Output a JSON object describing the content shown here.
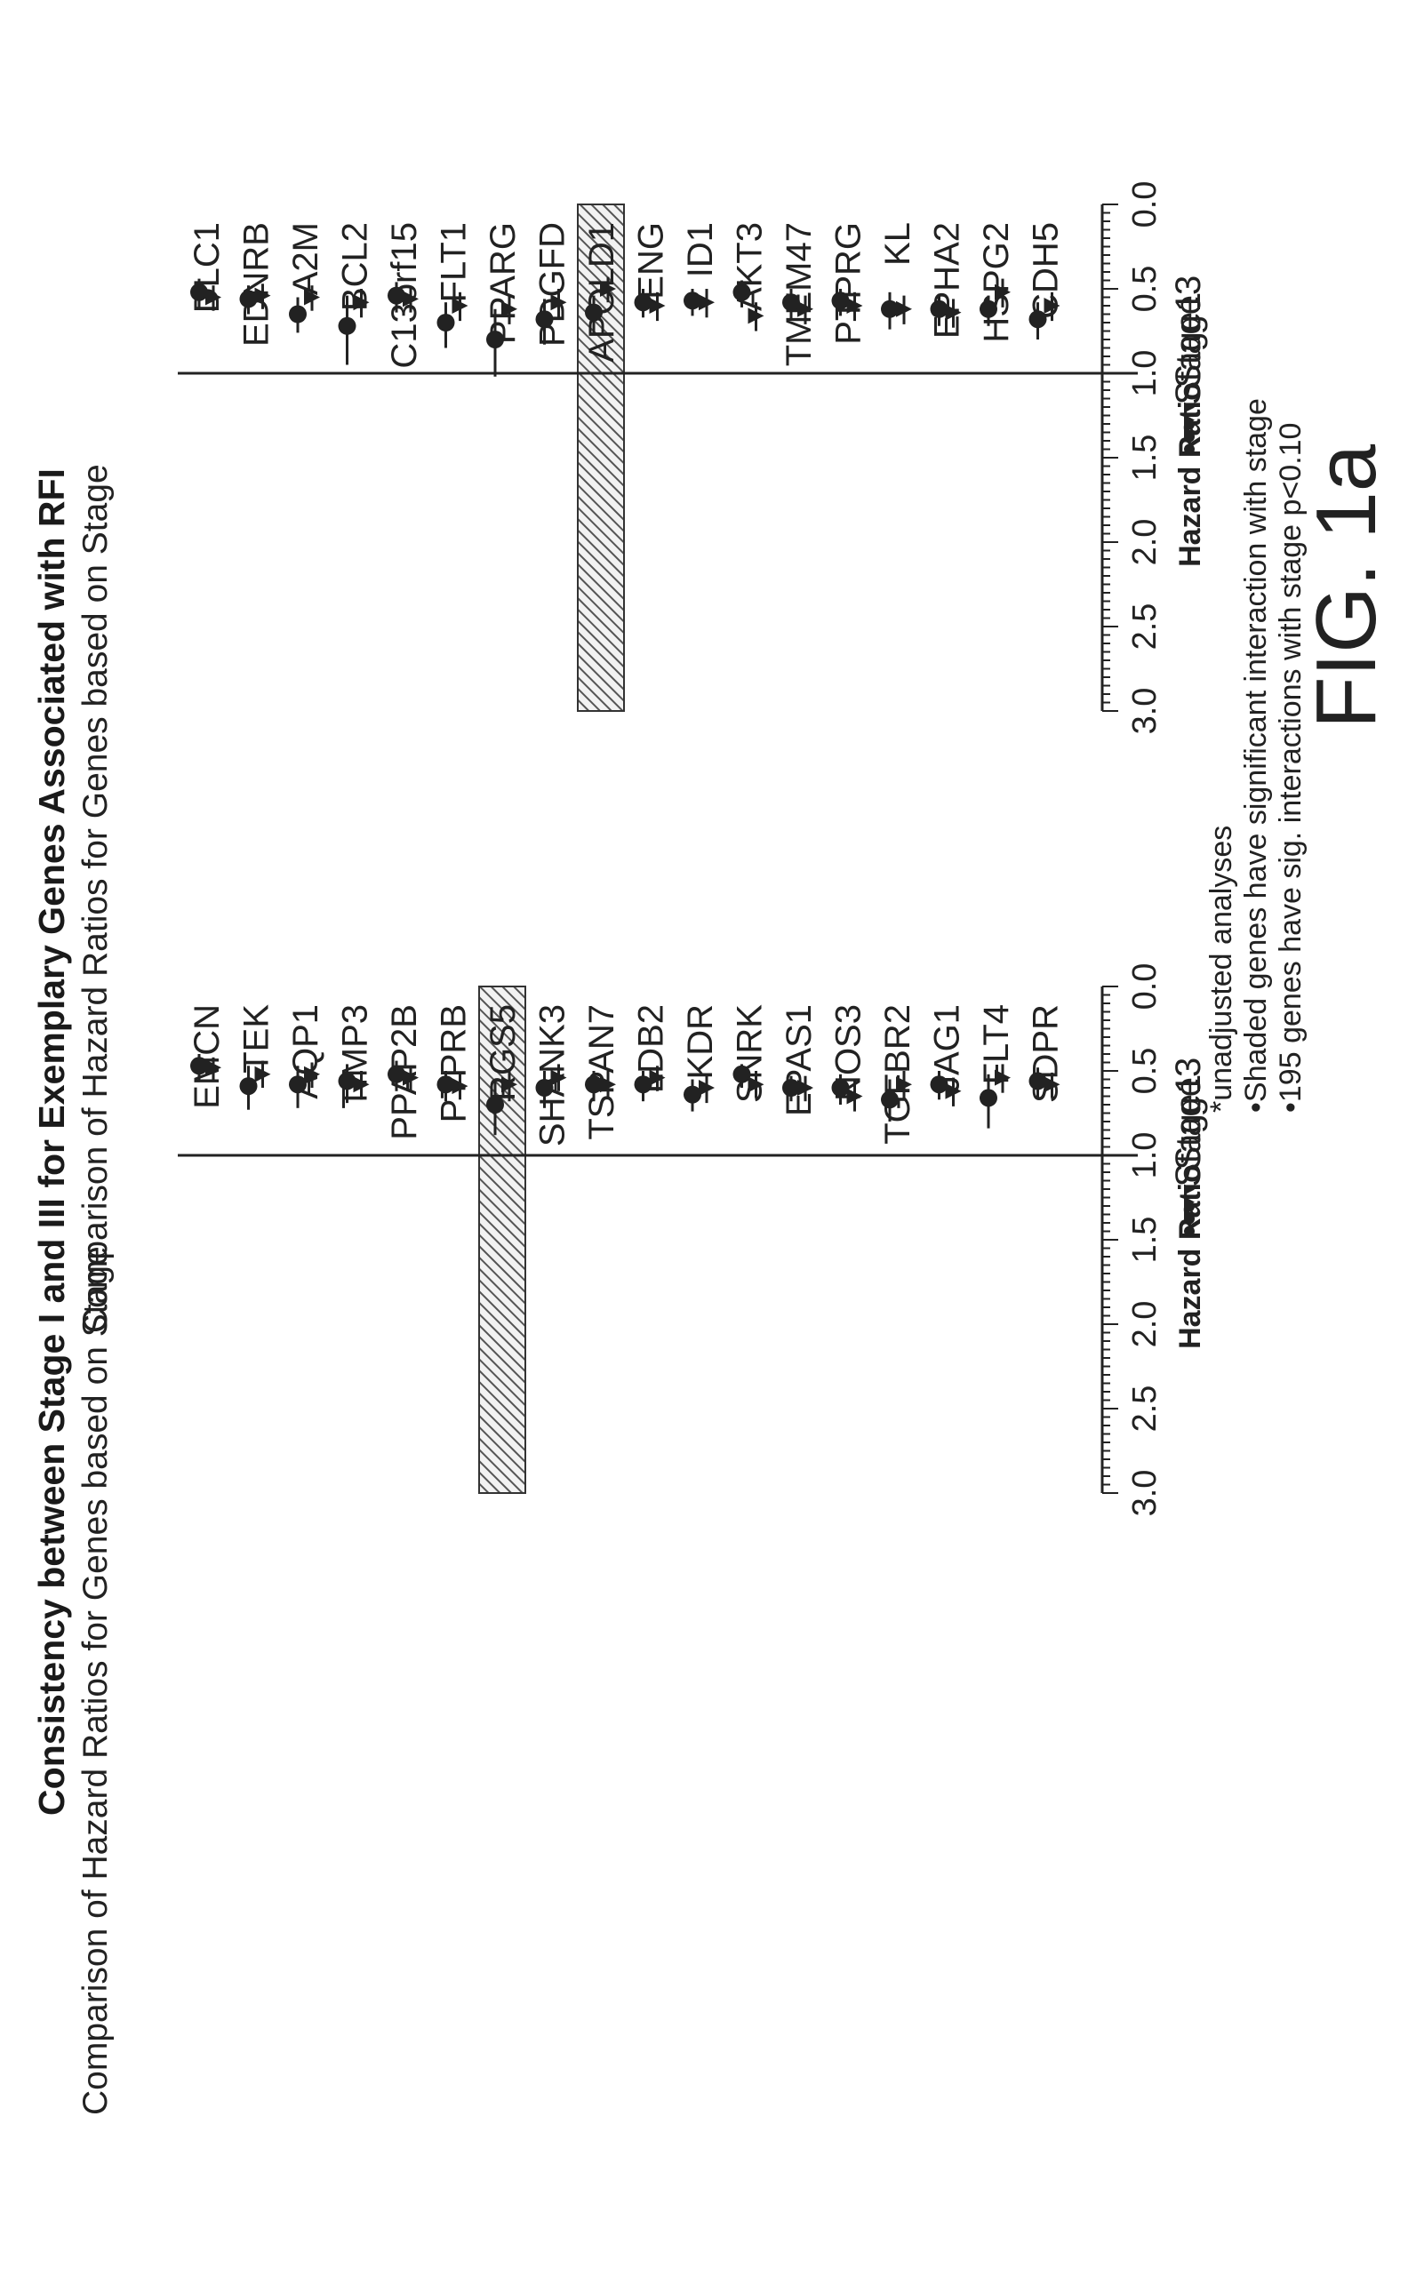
{
  "title": "Consistency between Stage I and III for Exemplary Genes Associated with RFI",
  "chart_data": [
    {
      "type": "scatter",
      "title": "Comparison of Hazard Ratios for Genes based on Stage",
      "xlabel": "Hazard Ratio",
      "xlim": [
        0.0,
        3.0
      ],
      "xticks": [
        "0.0",
        "0.5",
        "1.0",
        "1.5",
        "2.0",
        "2.5",
        "3.0"
      ],
      "reference_line": 1.0,
      "categories": [
        "EMCN",
        "TEK",
        "AQP1",
        "TIMP3",
        "PPAP2B",
        "PTPRB",
        "RGS5",
        "SHANK3",
        "TSPAN7",
        "LDB2",
        "KDR",
        "SNRK",
        "EPAS1",
        "NOS3",
        "TGFBR2",
        "JAG1",
        "FLT4",
        "SDPR"
      ],
      "shaded": [
        "RGS5"
      ],
      "legend": {
        "stage1": "Stage1",
        "stage3": "Stage3"
      },
      "series": [
        {
          "name": "Stage1",
          "marker": "circle",
          "values": [
            0.47,
            0.59,
            0.58,
            0.56,
            0.52,
            0.58,
            0.7,
            0.6,
            0.58,
            0.58,
            0.64,
            0.52,
            0.6,
            0.6,
            0.67,
            0.58,
            0.66,
            0.56
          ],
          "lower": [
            0.4,
            0.47,
            0.47,
            0.46,
            0.44,
            0.5,
            0.55,
            0.5,
            0.5,
            0.5,
            0.55,
            0.46,
            0.53,
            0.52,
            0.55,
            0.5,
            0.52,
            0.48
          ],
          "upper": [
            0.56,
            0.73,
            0.72,
            0.69,
            0.62,
            0.68,
            0.88,
            0.72,
            0.68,
            0.68,
            0.74,
            0.6,
            0.68,
            0.7,
            0.8,
            0.67,
            0.84,
            0.66
          ]
        },
        {
          "name": "Stage3",
          "marker": "triangle",
          "values": [
            0.48,
            0.52,
            0.52,
            0.58,
            0.54,
            0.59,
            0.58,
            0.54,
            0.58,
            0.54,
            0.6,
            0.58,
            0.6,
            0.65,
            0.58,
            0.62,
            0.54,
            0.58
          ],
          "lower": [
            0.42,
            0.44,
            0.45,
            0.5,
            0.47,
            0.52,
            0.49,
            0.46,
            0.5,
            0.47,
            0.52,
            0.5,
            0.53,
            0.56,
            0.5,
            0.54,
            0.46,
            0.51
          ],
          "upper": [
            0.56,
            0.6,
            0.6,
            0.67,
            0.62,
            0.67,
            0.68,
            0.62,
            0.66,
            0.62,
            0.69,
            0.66,
            0.68,
            0.74,
            0.67,
            0.71,
            0.63,
            0.66
          ]
        }
      ]
    },
    {
      "type": "scatter",
      "title": "Comparison of Hazard Ratios for Genes based on Stage",
      "xlabel": "Hazard Ratio",
      "xlim": [
        0.0,
        3.0
      ],
      "xticks": [
        "0.0",
        "0.5",
        "1.0",
        "1.5",
        "2.0",
        "2.5",
        "3.0"
      ],
      "reference_line": 1.0,
      "categories": [
        "DLC1",
        "EDNRB",
        "A2M",
        "BCL2",
        "C13orf15",
        "FLT1",
        "PPARG",
        "PDGFD",
        "APOLD1",
        "ENG",
        "ID1",
        "AKT3",
        "TMEM47",
        "PTPRG",
        "KL",
        "EPHA2",
        "HSPG2",
        "CDH5"
      ],
      "shaded": [
        "APOLD1"
      ],
      "legend": {
        "stage1": "Stage1",
        "stage3": "Stage3"
      },
      "series": [
        {
          "name": "Stage1",
          "marker": "circle",
          "values": [
            0.52,
            0.56,
            0.65,
            0.72,
            0.54,
            0.7,
            0.8,
            0.68,
            0.64,
            0.58,
            0.57,
            0.52,
            0.58,
            0.57,
            0.62,
            0.62,
            0.62,
            0.68
          ],
          "lower": [
            0.44,
            0.48,
            0.55,
            0.54,
            0.46,
            0.58,
            0.62,
            0.56,
            0.54,
            0.5,
            0.5,
            0.45,
            0.5,
            0.5,
            0.52,
            0.53,
            0.54,
            0.58
          ],
          "upper": [
            0.62,
            0.65,
            0.76,
            0.95,
            0.64,
            0.85,
            1.02,
            0.83,
            0.76,
            0.67,
            0.66,
            0.61,
            0.68,
            0.66,
            0.74,
            0.72,
            0.72,
            0.8
          ]
        },
        {
          "name": "Stage3",
          "marker": "triangle",
          "values": [
            0.55,
            0.54,
            0.55,
            0.58,
            0.56,
            0.6,
            0.62,
            0.58,
            0.5,
            0.6,
            0.58,
            0.66,
            0.62,
            0.6,
            0.62,
            0.64,
            0.52,
            0.6
          ],
          "lower": [
            0.48,
            0.47,
            0.48,
            0.5,
            0.49,
            0.52,
            0.54,
            0.5,
            0.43,
            0.52,
            0.5,
            0.58,
            0.54,
            0.52,
            0.54,
            0.56,
            0.44,
            0.52
          ],
          "upper": [
            0.63,
            0.62,
            0.63,
            0.67,
            0.64,
            0.69,
            0.71,
            0.67,
            0.58,
            0.69,
            0.67,
            0.75,
            0.71,
            0.69,
            0.71,
            0.73,
            0.61,
            0.69
          ]
        }
      ]
    }
  ],
  "notes": [
    "*unadjusted analyses",
    "•Shaded genes have significant interaction with stage",
    "•195 genes have sig. interactions with stage p<0.10"
  ],
  "figure_label": "FIG. 1a"
}
